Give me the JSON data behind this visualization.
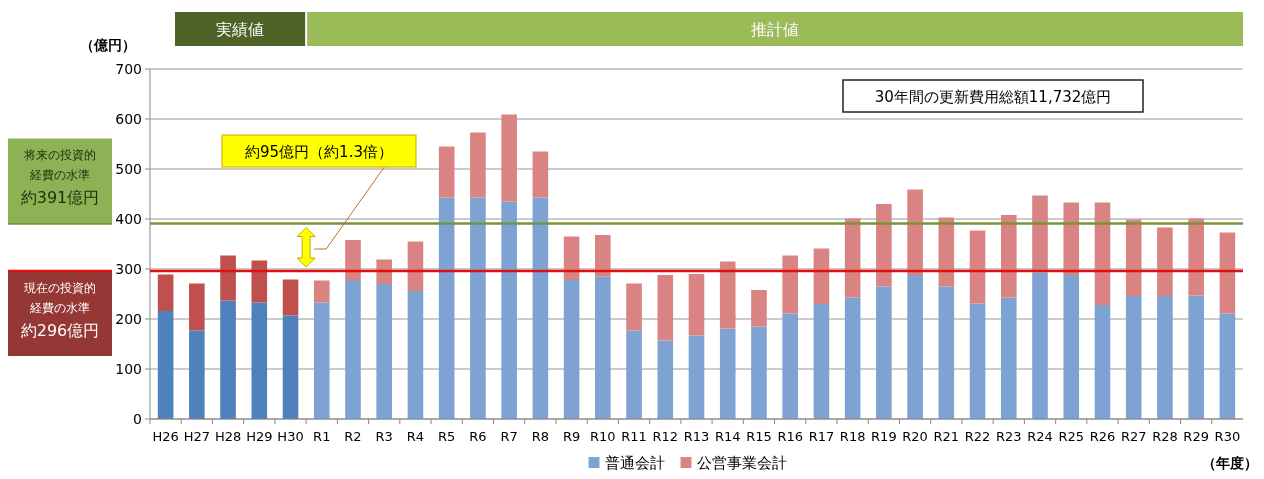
{
  "chart_data": {
    "type": "bar",
    "stacked": true,
    "xlabel": "（年度）",
    "ylabel": "（億円）",
    "categories": [
      "H26",
      "H27",
      "H28",
      "H29",
      "H30",
      "R1",
      "R2",
      "R3",
      "R4",
      "R5",
      "R6",
      "R7",
      "R8",
      "R9",
      "R10",
      "R11",
      "R12",
      "R13",
      "R14",
      "R15",
      "R16",
      "R17",
      "R18",
      "R19",
      "R20",
      "R21",
      "R22",
      "R23",
      "R24",
      "R25",
      "R26",
      "R27",
      "R28",
      "R29",
      "R30"
    ],
    "series": [
      {
        "name": "普通会計",
        "color": "#7ea3d2",
        "colors": [
          "#4f81bd",
          "#4f81bd",
          "#4f81bd",
          "#4f81bd",
          "#4f81bd",
          "#7ea3d2",
          "#7ea3d2",
          "#7ea3d2",
          "#7ea3d2",
          "#7ea3d2",
          "#7ea3d2",
          "#7ea3d2",
          "#7ea3d2",
          "#7ea3d2",
          "#7ea3d2",
          "#7ea3d2",
          "#7ea3d2",
          "#7ea3d2",
          "#7ea3d2",
          "#7ea3d2",
          "#7ea3d2",
          "#7ea3d2",
          "#7ea3d2",
          "#7ea3d2",
          "#7ea3d2",
          "#7ea3d2",
          "#7ea3d2",
          "#7ea3d2",
          "#7ea3d2",
          "#7ea3d2",
          "#7ea3d2",
          "#7ea3d2",
          "#7ea3d2",
          "#7ea3d2",
          "#7ea3d2"
        ],
        "values": [
          216,
          177,
          237,
          233,
          207,
          233,
          278,
          270,
          256,
          443,
          443,
          435,
          443,
          278,
          285,
          177,
          157,
          167,
          181,
          185,
          211,
          230,
          243,
          265,
          288,
          265,
          231,
          243,
          293,
          288,
          228,
          246,
          246,
          247,
          211
        ]
      },
      {
        "name": "公営事業会計",
        "color": "#d98483",
        "colors": [
          "#c0504d",
          "#c0504d",
          "#c0504d",
          "#c0504d",
          "#c0504d",
          "#d98483",
          "#d98483",
          "#d98483",
          "#d98483",
          "#d98483",
          "#d98483",
          "#d98483",
          "#d98483",
          "#d98483",
          "#d98483",
          "#d98483",
          "#d98483",
          "#d98483",
          "#d98483",
          "#d98483",
          "#d98483",
          "#d98483",
          "#d98483",
          "#d98483",
          "#d98483",
          "#d98483",
          "#d98483",
          "#d98483",
          "#d98483",
          "#d98483",
          "#d98483",
          "#d98483",
          "#d98483",
          "#d98483",
          "#d98483"
        ],
        "values": [
          73,
          94,
          90,
          84,
          72,
          44,
          80,
          49,
          99,
          102,
          130,
          174,
          92,
          87,
          83,
          94,
          131,
          123,
          134,
          73,
          116,
          111,
          158,
          165,
          171,
          138,
          146,
          165,
          154,
          145,
          205,
          153,
          137,
          154,
          162
        ]
      }
    ],
    "ylim": [
      0,
      700
    ],
    "yticks": [
      0,
      100,
      200,
      300,
      400,
      500,
      600,
      700
    ],
    "grid": "y",
    "legend": "bottom",
    "ref_lines": [
      {
        "axis": "y",
        "value": 391,
        "color": "#77933c"
      },
      {
        "axis": "y",
        "value": 296,
        "color": "#e01010"
      }
    ],
    "annotations": [
      "実績値",
      "推計値",
      "将来の投資的経費の水準",
      "現在の投資的経費の水準",
      "約391億円",
      "約296億円",
      "約95億円（約1.3倍）",
      "30年間の更新費用総額11,732億円"
    ]
  }
}
